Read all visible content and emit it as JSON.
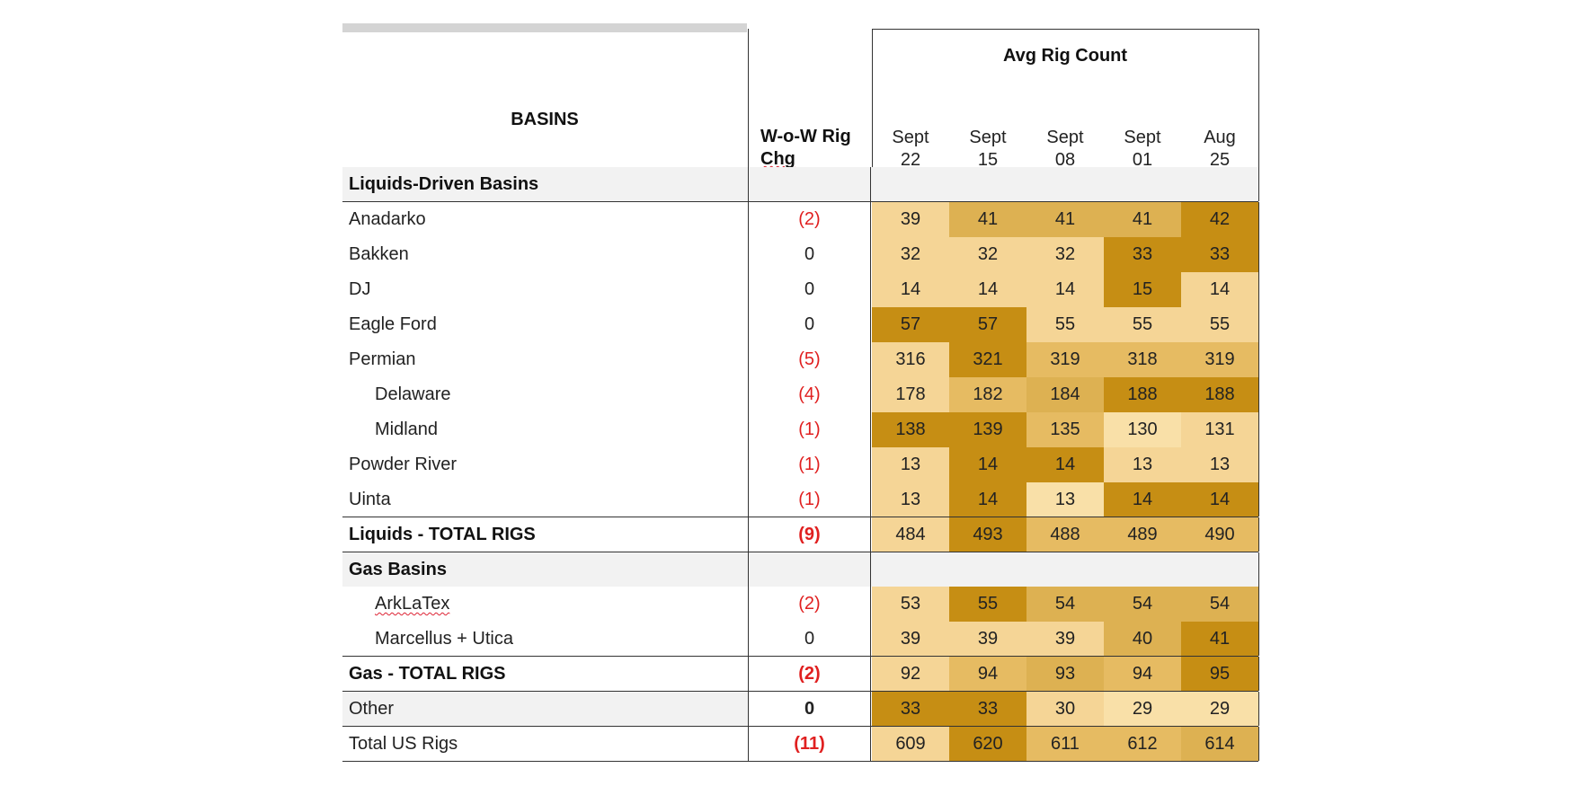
{
  "header": {
    "basins": "BASINS",
    "wow_line1": "W-o-W Rig",
    "wow_line2": "Chg",
    "avg_rig_count": "Avg Rig Count",
    "dates": [
      {
        "top": "Sept",
        "bottom": "22"
      },
      {
        "top": "Sept",
        "bottom": "15"
      },
      {
        "top": "Sept",
        "bottom": "08"
      },
      {
        "top": "Sept",
        "bottom": "01"
      },
      {
        "top": "Aug",
        "bottom": "25"
      }
    ]
  },
  "sections": {
    "liquids": "Liquids-Driven Basins",
    "gas": "Gas Basins"
  },
  "rows": [
    {
      "name": "Anadarko",
      "wow": "(2)",
      "values": [
        "39",
        "41",
        "41",
        "41",
        "42"
      ]
    },
    {
      "name": "Bakken",
      "wow": "0",
      "values": [
        "32",
        "32",
        "32",
        "33",
        "33"
      ]
    },
    {
      "name": "DJ",
      "wow": "0",
      "values": [
        "14",
        "14",
        "14",
        "15",
        "14"
      ]
    },
    {
      "name": "Eagle Ford",
      "wow": "0",
      "values": [
        "57",
        "57",
        "55",
        "55",
        "55"
      ]
    },
    {
      "name": "Permian",
      "wow": "(5)",
      "values": [
        "316",
        "321",
        "319",
        "318",
        "319"
      ]
    },
    {
      "name": "Delaware",
      "wow": "(4)",
      "values": [
        "178",
        "182",
        "184",
        "188",
        "188"
      ]
    },
    {
      "name": "Midland",
      "wow": "(1)",
      "values": [
        "138",
        "139",
        "135",
        "130",
        "131"
      ]
    },
    {
      "name": "Powder River",
      "wow": "(1)",
      "values": [
        "13",
        "14",
        "14",
        "13",
        "13"
      ]
    },
    {
      "name": "Uinta",
      "wow": "(1)",
      "values": [
        "13",
        "14",
        "13",
        "14",
        "14"
      ]
    },
    {
      "name": "Liquids - TOTAL RIGS",
      "wow": "(9)",
      "values": [
        "484",
        "493",
        "488",
        "489",
        "490"
      ]
    },
    {
      "name": "ArkLaTex",
      "wow": "(2)",
      "values": [
        "53",
        "55",
        "54",
        "54",
        "54"
      ]
    },
    {
      "name": "Marcellus + Utica",
      "wow": "0",
      "values": [
        "39",
        "39",
        "39",
        "40",
        "41"
      ]
    },
    {
      "name": "Gas - TOTAL RIGS",
      "wow": "(2)",
      "values": [
        "92",
        "94",
        "93",
        "94",
        "95"
      ]
    },
    {
      "name": "Other",
      "wow": "0",
      "values": [
        "33",
        "33",
        "30",
        "29",
        "29"
      ]
    },
    {
      "name": "Total US Rigs",
      "wow": "(11)",
      "values": [
        "609",
        "620",
        "611",
        "612",
        "614"
      ]
    }
  ],
  "colors": {
    "shade_lightest": "#f9e0a8",
    "shade_light": "#f5d596",
    "shade_mid": "#e6bb62",
    "shade_midark": "#ddb152",
    "shade_dark": "#c68e14",
    "negative_text": "#e02020"
  }
}
